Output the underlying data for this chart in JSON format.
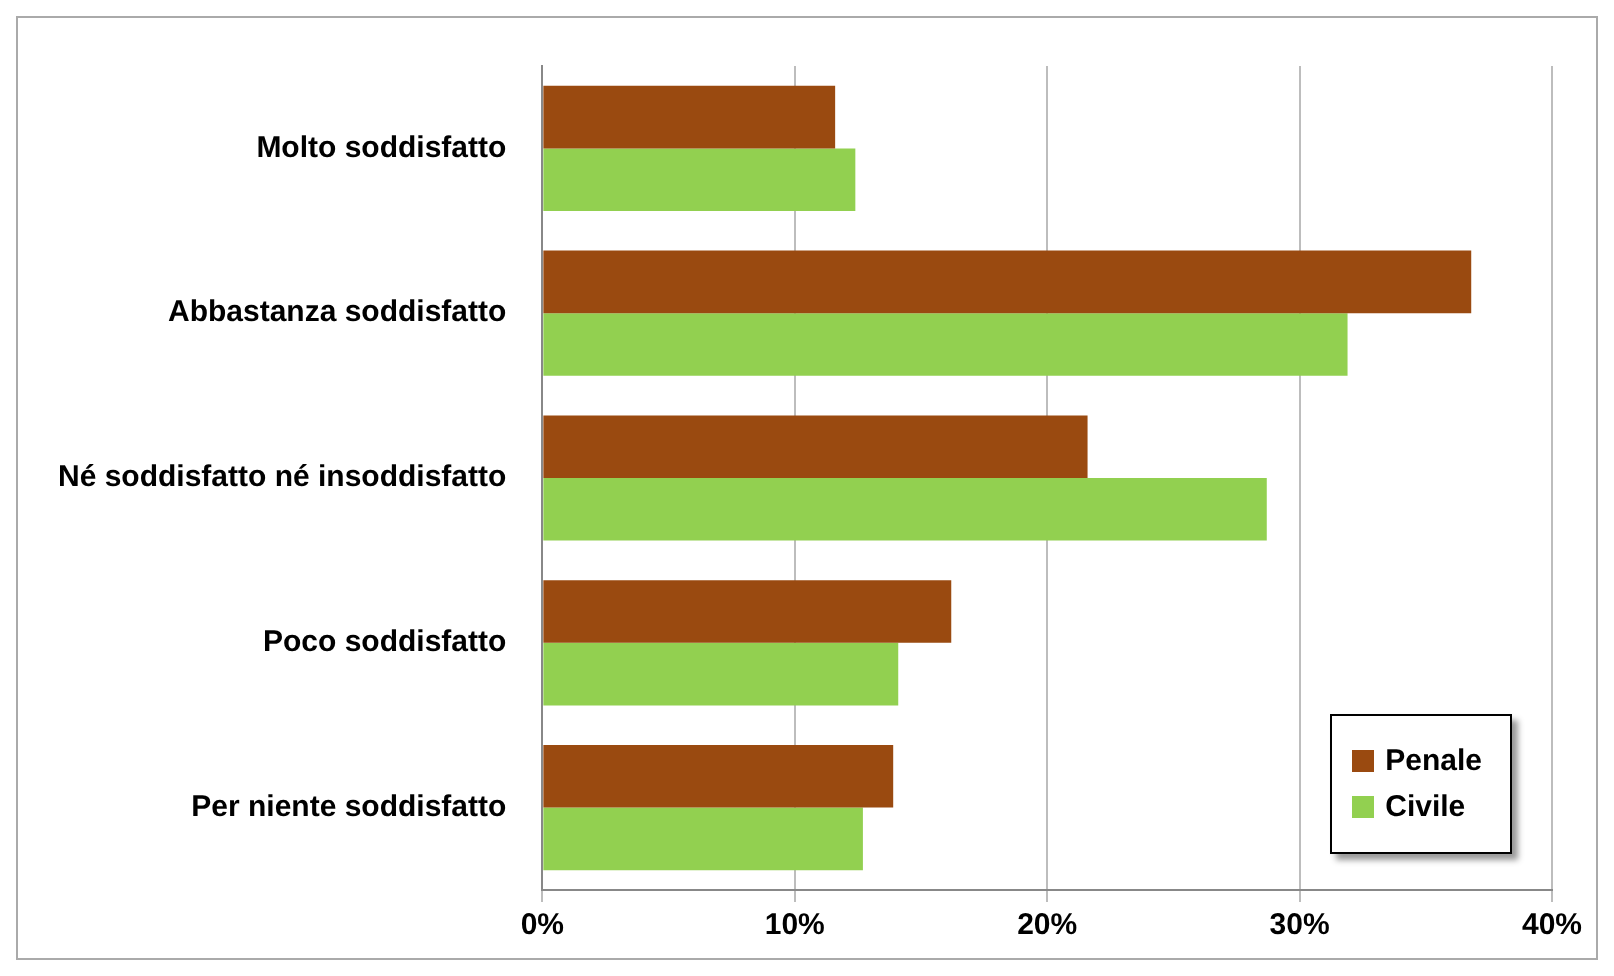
{
  "chart_data": {
    "type": "bar",
    "orientation": "horizontal",
    "categories": [
      "Molto soddisfatto",
      "Abbastanza soddisfatto",
      "Né soddisfatto né insoddisfatto",
      "Poco soddisfatto",
      "Per niente soddisfatto"
    ],
    "series": [
      {
        "name": "Penale",
        "color": "#9a4a10",
        "values": [
          11.6,
          36.8,
          21.6,
          16.2,
          13.9
        ]
      },
      {
        "name": "Civile",
        "color": "#92d050",
        "values": [
          12.4,
          31.9,
          28.7,
          14.1,
          12.7
        ]
      }
    ],
    "xlim": [
      0,
      40
    ],
    "xticks": [
      {
        "value": 0,
        "label": "0%"
      },
      {
        "value": 10,
        "label": "10%"
      },
      {
        "value": 20,
        "label": "20%"
      },
      {
        "value": 30,
        "label": "30%"
      },
      {
        "value": 40,
        "label": "40%"
      }
    ],
    "grid": "x",
    "legend": "bottom right"
  }
}
